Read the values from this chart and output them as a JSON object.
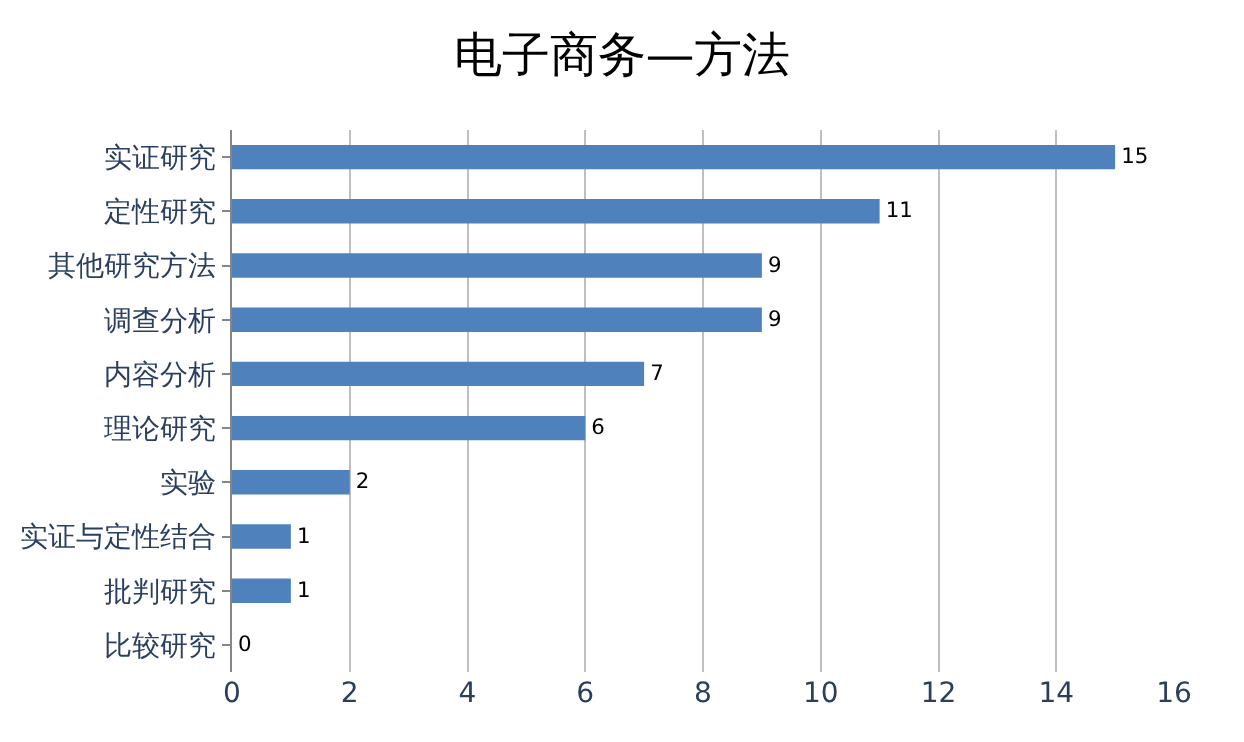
{
  "chart_data": {
    "type": "bar",
    "orientation": "horizontal",
    "title": "电子商务—方法",
    "categories": [
      "实证研究",
      "定性研究",
      "其他研究方法",
      "调查分析",
      "内容分析",
      "理论研究",
      "实验",
      "实证与定性结合",
      "批判研究",
      "比较研究"
    ],
    "values": [
      15,
      11,
      9,
      9,
      7,
      6,
      2,
      1,
      1,
      0
    ],
    "color": "#4f81bd",
    "xlim": [
      0,
      16
    ],
    "xticks": [
      0,
      2,
      4,
      6,
      8,
      10,
      12,
      14,
      16
    ],
    "grid": "x",
    "data_labels": true
  }
}
